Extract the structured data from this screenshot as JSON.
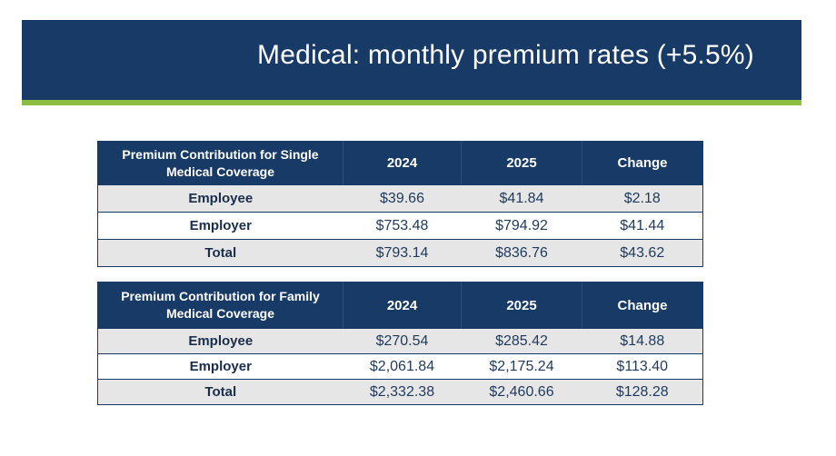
{
  "slide": {
    "title": "Medical: monthly premium rates (+5.5%)",
    "colors": {
      "banner": "#173a66",
      "accent_bar": "#8cbf3f",
      "row_shade": "#e6e6e6"
    }
  },
  "tables": {
    "single": {
      "header": [
        "Premium Contribution for Single Medical Coverage",
        "2024",
        "2025",
        "Change"
      ],
      "rows": [
        [
          "Employee",
          "$39.66",
          "$41.84",
          "$2.18"
        ],
        [
          "Employer",
          "$753.48",
          "$794.92",
          "$41.44"
        ],
        [
          "Total",
          "$793.14",
          "$836.76",
          "$43.62"
        ]
      ]
    },
    "family": {
      "header": [
        "Premium Contribution for Family Medical Coverage",
        "2024",
        "2025",
        "Change"
      ],
      "rows": [
        [
          "Employee",
          "$270.54",
          "$285.42",
          "$14.88"
        ],
        [
          "Employer",
          "$2,061.84",
          "$2,175.24",
          "$113.40"
        ],
        [
          "Total",
          "$2,332.38",
          "$2,460.66",
          "$128.28"
        ]
      ]
    }
  }
}
